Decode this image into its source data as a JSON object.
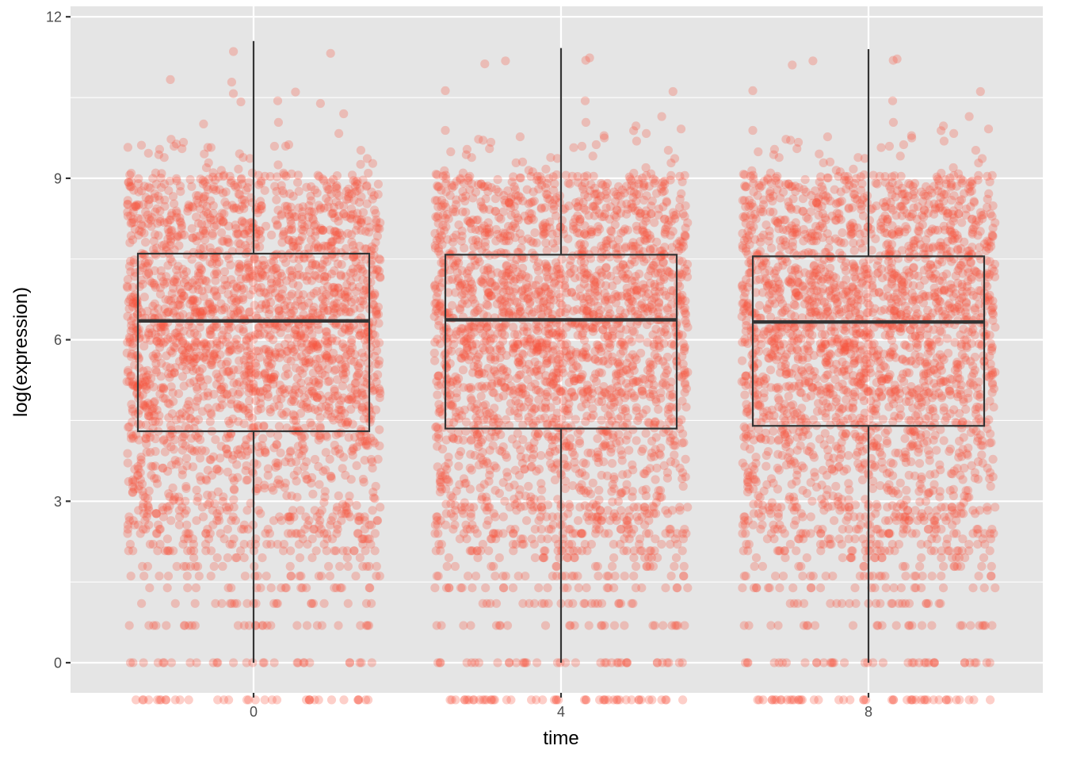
{
  "chart_data": {
    "type": "boxplot",
    "title": "",
    "xlabel": "time",
    "ylabel": "log(expression)",
    "ylim": [
      -0.62,
      12.15
    ],
    "y_ticks": [
      0,
      3,
      6,
      9,
      12
    ],
    "y_tick_labels": [
      "0",
      "3",
      "6",
      "9",
      "12"
    ],
    "categories": [
      "0",
      "4",
      "8"
    ],
    "grid": true,
    "legend": "none",
    "overlay": "jittered points",
    "boxes": [
      {
        "category": "0",
        "whisker_low": 0.0,
        "q1": 4.3,
        "median": 6.35,
        "q3": 7.6,
        "whisker_high": 11.55
      },
      {
        "category": "4",
        "whisker_low": 0.0,
        "q1": 4.35,
        "median": 6.37,
        "q3": 7.58,
        "whisker_high": 11.42
      },
      {
        "category": "8",
        "whisker_low": 0.0,
        "q1": 4.4,
        "median": 6.33,
        "q3": 7.55,
        "whisker_high": 11.4
      }
    ],
    "colors": {
      "panel_background": "#e5e5e5",
      "grid": "#ffffff",
      "points": "#f8533c",
      "box_line": "#333333"
    }
  }
}
